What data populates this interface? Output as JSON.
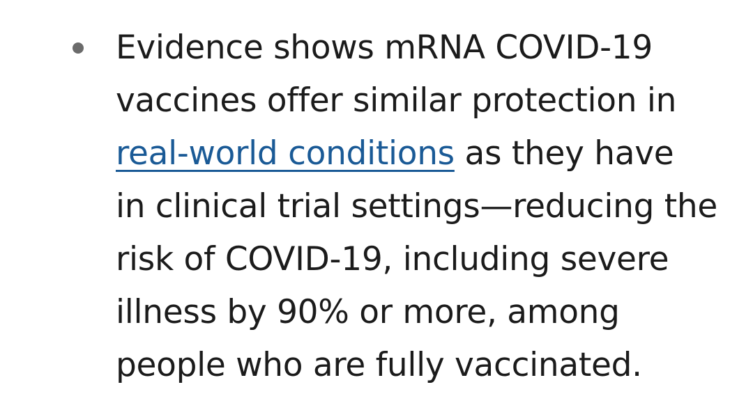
{
  "bullet": {
    "lines": {
      "l1": "Evidence shows mRNA COVID-19",
      "l2": "vaccines offer similar protection in",
      "l3_link": "real-world conditions",
      "l3_rest": " as they have",
      "l4": "in clinical trial settings—reducing the",
      "l5": "risk of COVID-19, including severe",
      "l6": "illness by 90% or more, among",
      "l7": "people who are fully vaccinated."
    }
  },
  "colors": {
    "text": "#1b1b1b",
    "link": "#1a5a96",
    "bullet": "#6b6b6b",
    "background": "#ffffff"
  }
}
